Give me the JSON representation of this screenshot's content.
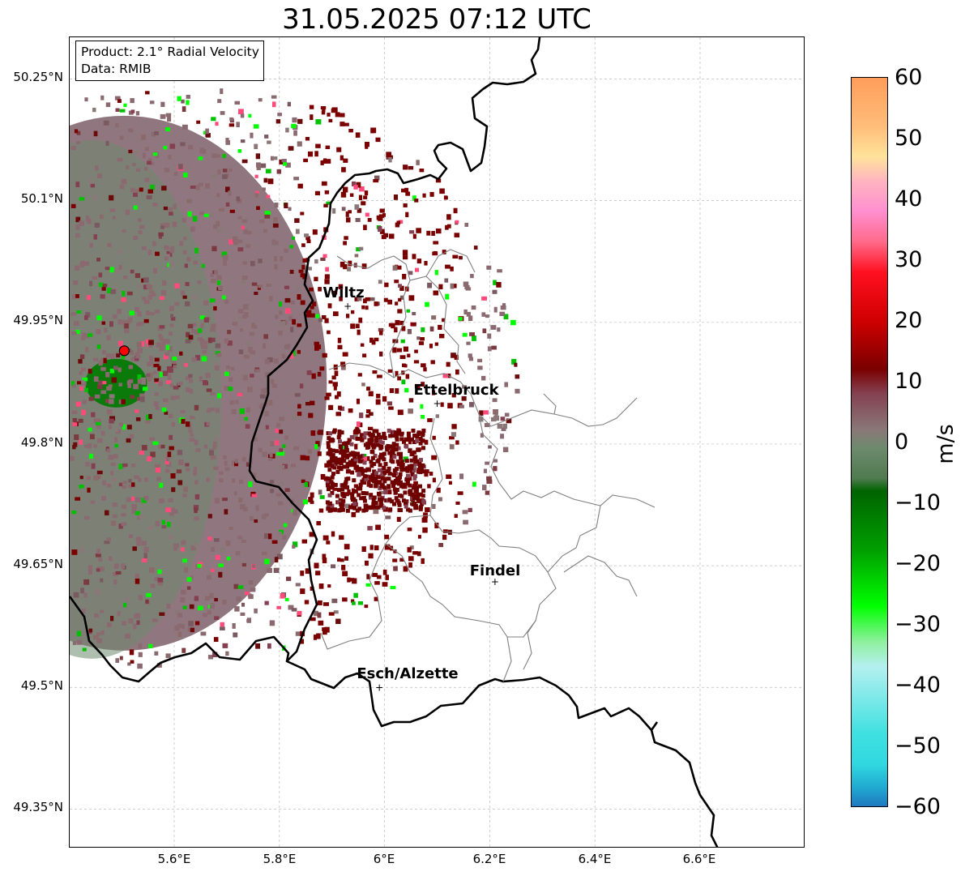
{
  "title": "31.05.2025 07:12 UTC",
  "info": {
    "product": "Product: 2.1° Radial Velocity",
    "data": "Data: RMIB"
  },
  "axes": {
    "y_ticks": [
      "50.25°N",
      "50.1°N",
      "49.95°N",
      "49.8°N",
      "49.65°N",
      "49.5°N",
      "49.35°N"
    ],
    "x_ticks": [
      "5.6°E",
      "5.8°E",
      "6°E",
      "6.2°E",
      "6.4°E",
      "6.6°E"
    ]
  },
  "cities": [
    {
      "name": "Wiltz",
      "lon": 5.93,
      "lat": 49.97
    },
    {
      "name": "Ettelbruck",
      "lon": 6.1,
      "lat": 49.85
    },
    {
      "name": "Findel",
      "lon": 6.21,
      "lat": 49.63
    },
    {
      "name": "Esch/Alzette",
      "lon": 5.99,
      "lat": 49.5
    }
  ],
  "radar_site": {
    "lon": 5.505,
    "lat": 49.915
  },
  "colorbar": {
    "ticks": [
      "60",
      "50",
      "40",
      "30",
      "20",
      "10",
      "0",
      "−10",
      "−20",
      "−30",
      "−40",
      "−50",
      "−60"
    ],
    "label": "m/s",
    "stops": [
      {
        "v": 60,
        "c": "#ff9d5a"
      },
      {
        "v": 52,
        "c": "#ffbd7a"
      },
      {
        "v": 47,
        "c": "#ffe39a"
      },
      {
        "v": 43,
        "c": "#ffb4c0"
      },
      {
        "v": 38,
        "c": "#ff8fd0"
      },
      {
        "v": 33,
        "c": "#ff6a8a"
      },
      {
        "v": 28,
        "c": "#ff1020"
      },
      {
        "v": 20,
        "c": "#d00000"
      },
      {
        "v": 12,
        "c": "#7a0000"
      },
      {
        "v": 8,
        "c": "#844050"
      },
      {
        "v": 2,
        "c": "#8a7878"
      },
      {
        "v": -1,
        "c": "#6e8a6e"
      },
      {
        "v": -6,
        "c": "#4f7a4f"
      },
      {
        "v": -8,
        "c": "#006400"
      },
      {
        "v": -18,
        "c": "#00a000"
      },
      {
        "v": -27,
        "c": "#00ff00"
      },
      {
        "v": -33,
        "c": "#90f0a0"
      },
      {
        "v": -37,
        "c": "#b4f0f0"
      },
      {
        "v": -48,
        "c": "#40e0e0"
      },
      {
        "v": -53,
        "c": "#30d8e0"
      },
      {
        "v": -57,
        "c": "#20a8d0"
      },
      {
        "v": -60,
        "c": "#1f78c0"
      }
    ]
  }
}
